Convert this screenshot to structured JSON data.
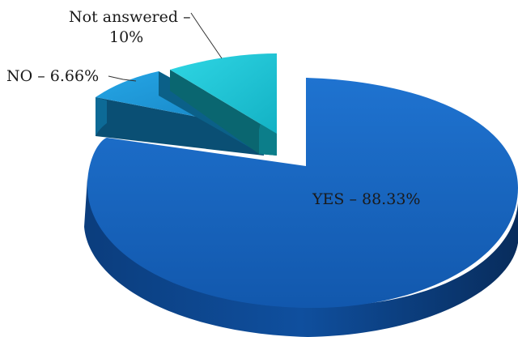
{
  "chart_data": {
    "type": "pie",
    "style": "3d-exploded",
    "slices": [
      {
        "name": "YES",
        "value": 88.33,
        "label": "YES – 88.33%",
        "color": "#1565c0",
        "exploded": false
      },
      {
        "name": "NO",
        "value": 6.66,
        "label": "NO – 6.66%",
        "color": "#1a8fcf",
        "exploded": true
      },
      {
        "name": "Not answered",
        "value": 10,
        "label_lines": [
          "Not answered –",
          "10%"
        ],
        "color": "#1fc4d4",
        "exploded": true
      }
    ],
    "title": "",
    "legend": "none"
  }
}
